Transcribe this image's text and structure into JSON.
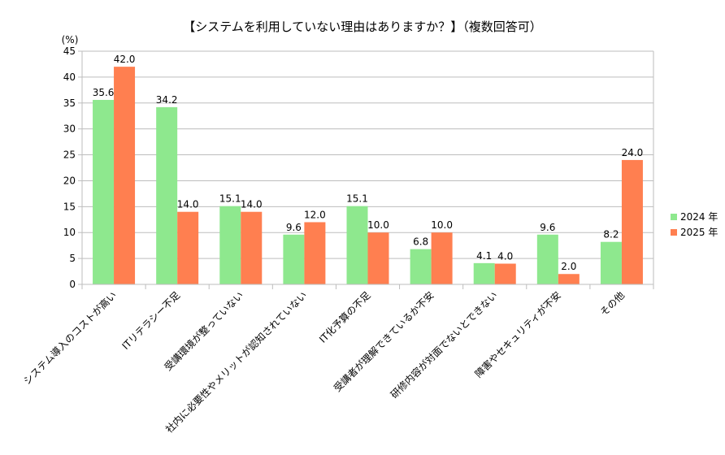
{
  "chart_data": {
    "type": "bar",
    "title": "【システムを利用していない理由はありますか？】（複数回答可）",
    "ylabel": "(%)",
    "ylim": [
      0,
      45
    ],
    "yticks": [
      0,
      5,
      10,
      15,
      20,
      25,
      30,
      35,
      40,
      45
    ],
    "grid": true,
    "legend_position": "right",
    "categories": [
      "システム導入のコストが高い",
      "ITリテラシー不足",
      "受講環境が整っていない",
      "社内に必要性やメリットが認知されていない",
      "IT化予算の不足",
      "受講者が理解できているか不安",
      "研修内容が対面でないとできない",
      "障害やセキュリティが不安",
      "その他"
    ],
    "series": [
      {
        "name": "2024 年",
        "color": "#8ee88e",
        "values": [
          35.6,
          34.2,
          15.1,
          9.6,
          15.1,
          6.8,
          4.1,
          9.6,
          8.2
        ]
      },
      {
        "name": "2025 年",
        "color": "#ff7f50",
        "values": [
          42.0,
          14.0,
          14.0,
          12.0,
          10.0,
          10.0,
          4.0,
          2.0,
          24.0
        ]
      }
    ]
  }
}
